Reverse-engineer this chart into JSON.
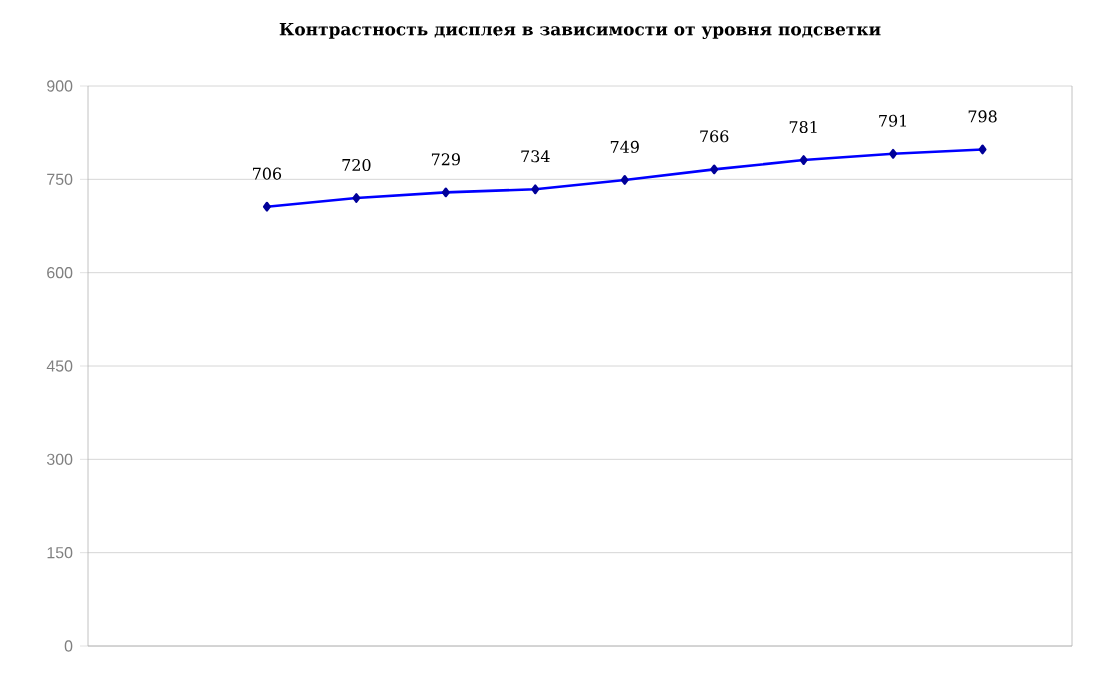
{
  "chart_data": {
    "type": "line",
    "title": "Контрастность дисплея в зависимости от уровня подсветки",
    "categories": [
      null,
      null,
      null,
      null,
      null,
      null,
      null,
      null,
      null,
      null,
      null
    ],
    "values": [
      null,
      null,
      706,
      720,
      729,
      734,
      749,
      766,
      781,
      791,
      798
    ],
    "color": "#0000ff",
    "marker": "diamond",
    "data_labels": true,
    "grid": "y",
    "ylim": [
      0,
      900
    ],
    "yticks": [
      0,
      150,
      300,
      450,
      600,
      750,
      900
    ]
  }
}
